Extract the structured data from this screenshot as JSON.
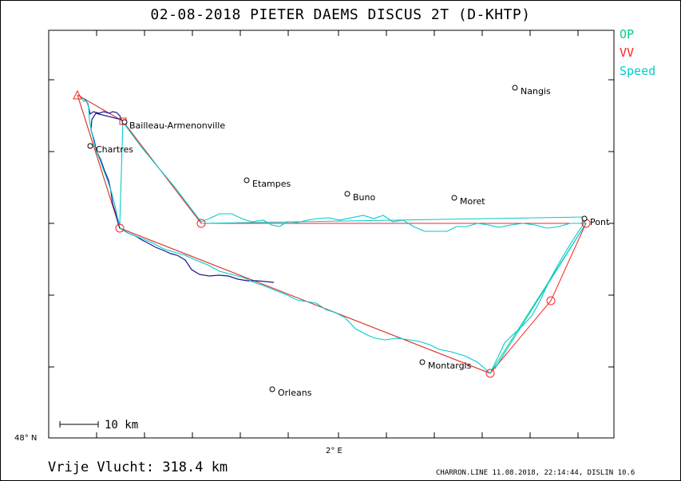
{
  "title": "02-08-2018    PIETER DAEMS    DISCUS 2T (D-KHTP)",
  "legend": [
    {
      "label": "OP",
      "color": "#00cc88"
    },
    {
      "label": "VV",
      "color": "#ff2020"
    },
    {
      "label": "Speed",
      "color": "#00cccc"
    }
  ],
  "axes": {
    "lat_label": "48° N",
    "lon_label": "2° E"
  },
  "scale": {
    "label": "10 km"
  },
  "towns": [
    {
      "name": "Nangis"
    },
    {
      "name": "Bailleau-Armenonville"
    },
    {
      "name": "Chartres"
    },
    {
      "name": "Etampes"
    },
    {
      "name": "Buno"
    },
    {
      "name": "Moret"
    },
    {
      "name": "Pont"
    },
    {
      "name": "Montargis"
    },
    {
      "name": "Orleans"
    }
  ],
  "footer": {
    "distance_text": "Vrije Vlucht:  318.4 km",
    "credit": "CHARRON.LINE 11.08.2018, 22:14:44, DISLIN 10.6"
  },
  "colors": {
    "track_dark": "#1a1a8c",
    "track_speed": "#00cccc",
    "op": "#00cc88",
    "vv": "#ff2020"
  }
}
